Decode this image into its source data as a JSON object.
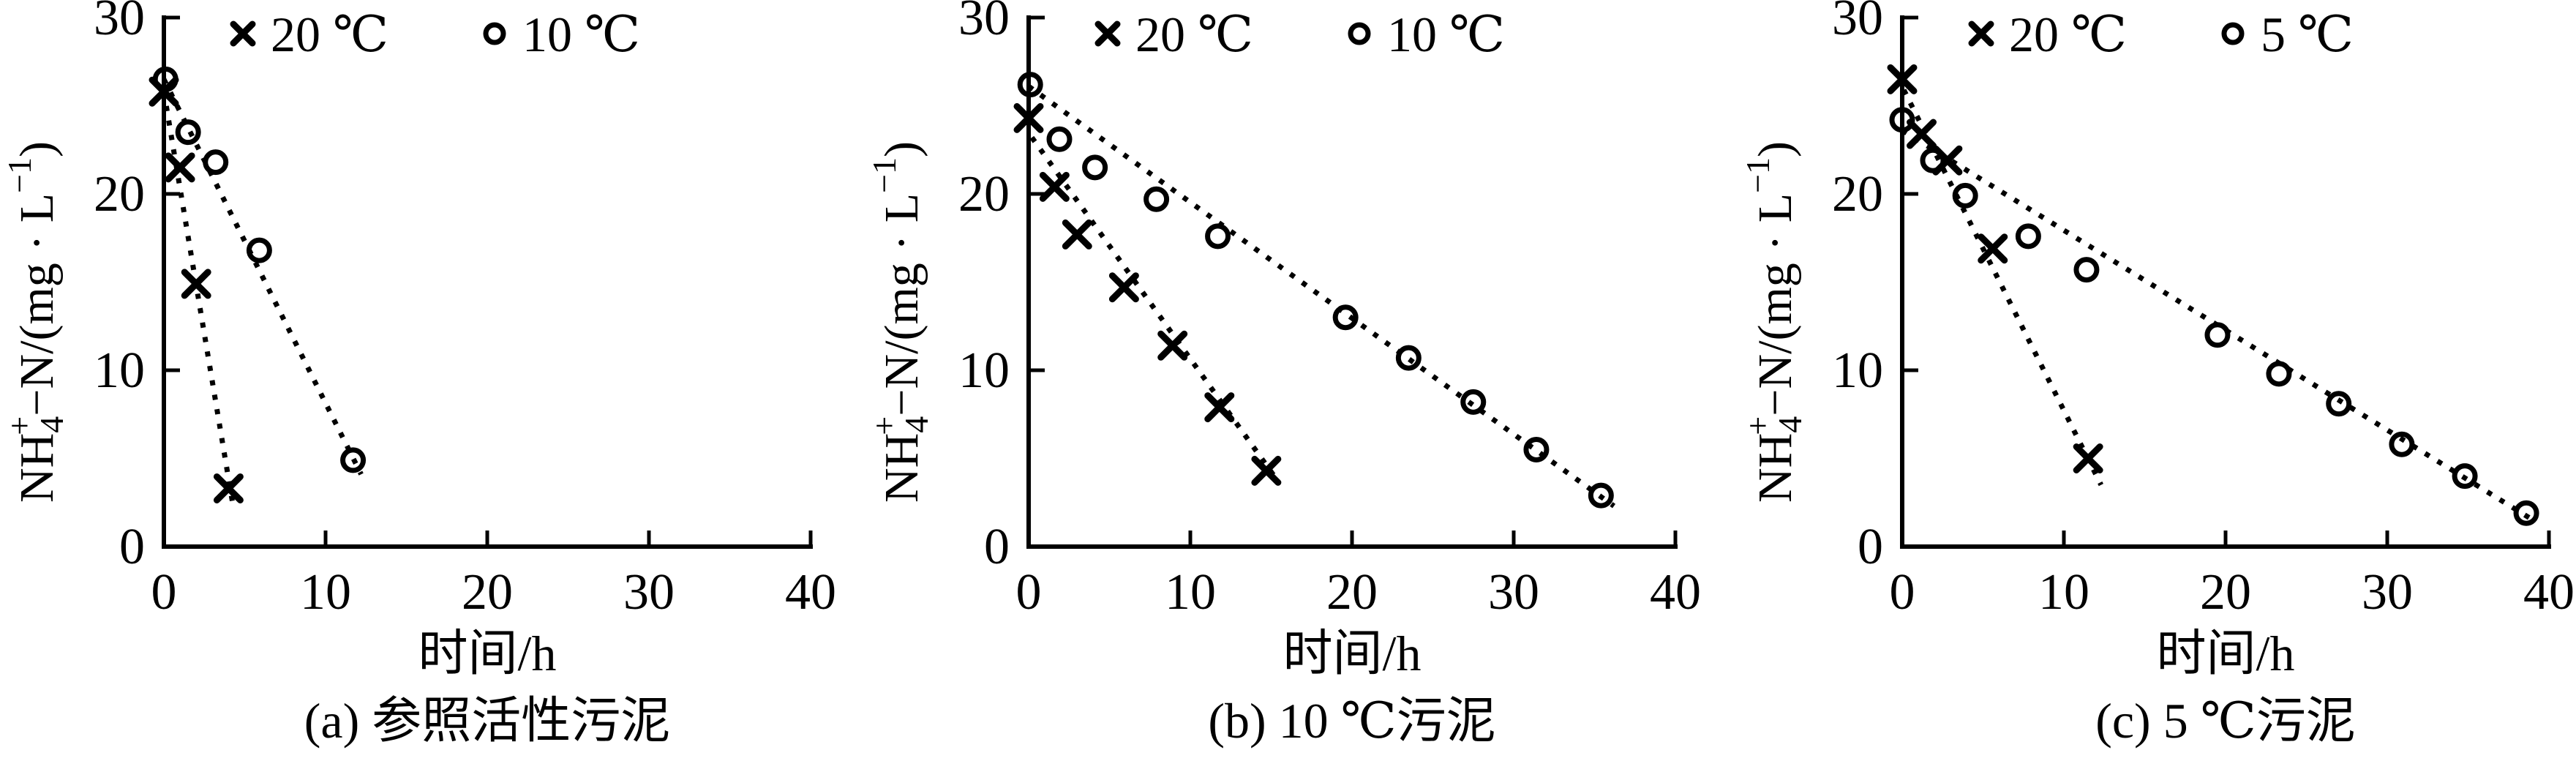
{
  "figure": {
    "background": "#ffffff",
    "ink_color": "#000000",
    "ylabel_plain": "NH4+-N/(mg·L-1)",
    "y_axis_label_segments": [
      {
        "text": "NH"
      },
      {
        "text": "4",
        "pos": "sub"
      },
      {
        "text": "+",
        "pos": "sup",
        "stack": true
      },
      {
        "text": "−N/(mg · L"
      },
      {
        "text": "−1",
        "pos": "sup"
      },
      {
        "text": ")"
      }
    ]
  },
  "chart_data": [
    {
      "type": "scatter",
      "caption": "(a) 参照活性污泥",
      "xlabel": "时间/h",
      "ylabel": "NH4+-N/(mg·L-1)",
      "xlim": [
        0,
        40
      ],
      "ylim": [
        0,
        30
      ],
      "x_ticks": [
        0,
        10,
        20,
        30,
        40
      ],
      "y_ticks": [
        0,
        10,
        20,
        30
      ],
      "grid": false,
      "legend_position": "top-inside",
      "series": [
        {
          "name": "20 ℃",
          "marker": "x",
          "line": "dotted-trend",
          "points": [
            [
              0,
              25.8
            ],
            [
              1.0,
              21.5
            ],
            [
              2.0,
              14.9
            ],
            [
              4.0,
              3.3
            ]
          ],
          "trend": [
            [
              0,
              25.8
            ],
            [
              4.3,
              2.2
            ]
          ]
        },
        {
          "name": "10 ℃",
          "marker": "o",
          "line": "dotted-trend",
          "points": [
            [
              0.1,
              26.5
            ],
            [
              1.5,
              23.5
            ],
            [
              3.2,
              21.8
            ],
            [
              5.9,
              16.8
            ],
            [
              11.7,
              4.9
            ]
          ],
          "trend": [
            [
              0,
              26.5
            ],
            [
              12.2,
              4.1
            ]
          ]
        }
      ]
    },
    {
      "type": "scatter",
      "caption": "(b) 10 ℃污泥",
      "xlabel": "时间/h",
      "ylabel": "NH4+-N/(mg·L-1)",
      "xlim": [
        0,
        40
      ],
      "ylim": [
        0,
        30
      ],
      "x_ticks": [
        0,
        10,
        20,
        30,
        40
      ],
      "y_ticks": [
        0,
        10,
        20,
        30
      ],
      "grid": false,
      "legend_position": "top-inside",
      "series": [
        {
          "name": "20 ℃",
          "marker": "x",
          "line": "dotted-trend",
          "points": [
            [
              0,
              24.3
            ],
            [
              1.6,
              20.4
            ],
            [
              3.0,
              17.7
            ],
            [
              5.9,
              14.7
            ],
            [
              8.9,
              11.4
            ],
            [
              11.8,
              7.9
            ],
            [
              14.7,
              4.3
            ]
          ],
          "trend": [
            [
              0.2,
              23.2
            ],
            [
              15.5,
              3.6
            ]
          ]
        },
        {
          "name": "10 ℃",
          "marker": "o",
          "line": "dotted-trend",
          "points": [
            [
              0.1,
              26.2
            ],
            [
              1.9,
              23.1
            ],
            [
              4.1,
              21.5
            ],
            [
              7.9,
              19.7
            ],
            [
              11.7,
              17.6
            ],
            [
              19.6,
              13.0
            ],
            [
              23.5,
              10.7
            ],
            [
              27.5,
              8.2
            ],
            [
              31.4,
              5.5
            ],
            [
              35.4,
              2.9
            ]
          ],
          "trend": [
            [
              0,
              26.1
            ],
            [
              36.2,
              2.3
            ]
          ]
        }
      ]
    },
    {
      "type": "scatter",
      "caption": "(c) 5 ℃污泥",
      "xlabel": "时间/h",
      "ylabel": "NH4+-N/(mg·L-1)",
      "xlim": [
        0,
        40
      ],
      "ylim": [
        0,
        30
      ],
      "x_ticks": [
        0,
        10,
        20,
        30,
        40
      ],
      "y_ticks": [
        0,
        10,
        20,
        30
      ],
      "grid": false,
      "legend_position": "top-inside",
      "series": [
        {
          "name": "20 ℃",
          "marker": "x",
          "line": "dotted-trend",
          "points": [
            [
              0,
              26.5
            ],
            [
              1.2,
              23.4
            ],
            [
              2.8,
              21.9
            ],
            [
              5.6,
              16.9
            ],
            [
              11.5,
              5.0
            ]
          ],
          "trend": [
            [
              0.1,
              25.9
            ],
            [
              12.3,
              3.5
            ]
          ]
        },
        {
          "name": "5 ℃",
          "marker": "o",
          "line": "dotted-trend",
          "points": [
            [
              0,
              24.2
            ],
            [
              1.9,
              21.9
            ],
            [
              3.9,
              19.9
            ],
            [
              7.8,
              17.6
            ],
            [
              11.4,
              15.7
            ],
            [
              19.5,
              12.0
            ],
            [
              23.3,
              9.8
            ],
            [
              27.0,
              8.1
            ],
            [
              30.9,
              5.8
            ],
            [
              34.8,
              4.0
            ],
            [
              38.6,
              1.9
            ]
          ],
          "trend": [
            [
              0,
              23.6
            ],
            [
              39.2,
              1.4
            ]
          ]
        }
      ]
    }
  ]
}
